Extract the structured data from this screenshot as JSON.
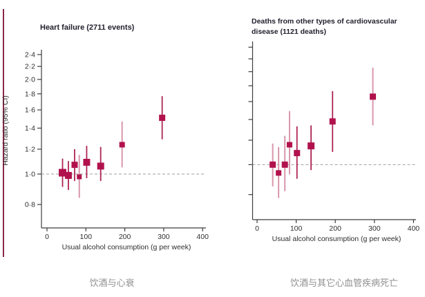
{
  "colors": {
    "point": "#B1124D",
    "ci_dark": "#AC2453",
    "ci_pale": "#D996AB",
    "axis": "#3c3c3c",
    "tick_text": "#2e2e2e",
    "ref_line": "#9e9e9e",
    "title": "#21212e",
    "caption": "#909090",
    "left_border": "#8C2748"
  },
  "captions": {
    "left": "饮酒与心衰",
    "right": "饮酒与其它心血管疾病死亡"
  },
  "chart_data": [
    {
      "type": "scatter",
      "id": "heart-failure",
      "title": "Heart failure (2711 events)",
      "xlabel": "Usual alcohol consumption (g per week)",
      "ylabel": "Hazard ratio (95% CI)",
      "y_scale": "log",
      "show_y_tick_labels": true,
      "y_ticks": [
        {
          "label": "2·4",
          "value": 2.4
        },
        {
          "label": "2·2",
          "value": 2.2
        },
        {
          "label": "2·0",
          "value": 2.0
        },
        {
          "label": "1·8",
          "value": 1.8
        },
        {
          "label": "1·6",
          "value": 1.6
        },
        {
          "label": "1·4",
          "value": 1.4
        },
        {
          "label": "1·2",
          "value": 1.2
        },
        {
          "label": "1·0",
          "value": 1.0
        },
        {
          "label": "0·8",
          "value": 0.8
        }
      ],
      "x_ticks": [
        0,
        100,
        200,
        300,
        400
      ],
      "xlim": [
        0,
        400
      ],
      "reference_line": 1.0,
      "points": [
        {
          "x": 40,
          "hr": 1.01,
          "ci_low": 0.91,
          "ci_high": 1.12,
          "pale": false,
          "size": 11
        },
        {
          "x": 55,
          "hr": 0.99,
          "ci_low": 0.89,
          "ci_high": 1.1,
          "pale": false,
          "size": 10
        },
        {
          "x": 71,
          "hr": 1.07,
          "ci_low": 0.95,
          "ci_high": 1.2,
          "pale": false,
          "size": 9
        },
        {
          "x": 83,
          "hr": 0.98,
          "ci_low": 0.84,
          "ci_high": 1.15,
          "pale": true,
          "size": 7
        },
        {
          "x": 102,
          "hr": 1.09,
          "ci_low": 0.97,
          "ci_high": 1.23,
          "pale": false,
          "size": 10
        },
        {
          "x": 138,
          "hr": 1.06,
          "ci_low": 0.95,
          "ci_high": 1.22,
          "pale": false,
          "size": 10
        },
        {
          "x": 193,
          "hr": 1.24,
          "ci_low": 1.05,
          "ci_high": 1.47,
          "pale": true,
          "size": 8
        },
        {
          "x": 296,
          "hr": 1.51,
          "ci_low": 1.29,
          "ci_high": 1.77,
          "pale": false,
          "size": 9
        }
      ]
    },
    {
      "type": "scatter",
      "id": "other-cvd-deaths",
      "title": "Deaths from other types of cardiovascular disease (1121 deaths)",
      "xlabel": "Usual alcohol consumption (g per week)",
      "ylabel": null,
      "y_scale": "log",
      "show_y_tick_labels": false,
      "y_ticks": [
        {
          "label": "2·4",
          "value": 2.4
        },
        {
          "label": "2·2",
          "value": 2.2
        },
        {
          "label": "2·0",
          "value": 2.0
        },
        {
          "label": "1·8",
          "value": 1.8
        },
        {
          "label": "1·6",
          "value": 1.6
        },
        {
          "label": "1·4",
          "value": 1.4
        },
        {
          "label": "1·2",
          "value": 1.2
        },
        {
          "label": "1·0",
          "value": 1.0
        },
        {
          "label": "0·8",
          "value": 0.8
        }
      ],
      "x_ticks": [
        0,
        100,
        200,
        300,
        400
      ],
      "xlim": [
        0,
        400
      ],
      "reference_line": 1.0,
      "points": [
        {
          "x": 40,
          "hr": 1.0,
          "ci_low": 0.85,
          "ci_high": 1.17,
          "pale": true,
          "size": 9
        },
        {
          "x": 55,
          "hr": 0.94,
          "ci_low": 0.78,
          "ci_high": 1.14,
          "pale": true,
          "size": 8
        },
        {
          "x": 71,
          "hr": 1.0,
          "ci_low": 0.82,
          "ci_high": 1.24,
          "pale": true,
          "size": 9
        },
        {
          "x": 83,
          "hr": 1.16,
          "ci_low": 0.93,
          "ci_high": 1.49,
          "pale": true,
          "size": 8
        },
        {
          "x": 102,
          "hr": 1.09,
          "ci_low": 0.9,
          "ci_high": 1.33,
          "pale": false,
          "size": 9
        },
        {
          "x": 138,
          "hr": 1.15,
          "ci_low": 0.96,
          "ci_high": 1.34,
          "pale": false,
          "size": 10
        },
        {
          "x": 193,
          "hr": 1.38,
          "ci_low": 1.1,
          "ci_high": 1.73,
          "pale": false,
          "size": 9
        },
        {
          "x": 296,
          "hr": 1.66,
          "ci_low": 1.34,
          "ci_high": 2.06,
          "pale": true,
          "size": 9
        }
      ]
    }
  ]
}
